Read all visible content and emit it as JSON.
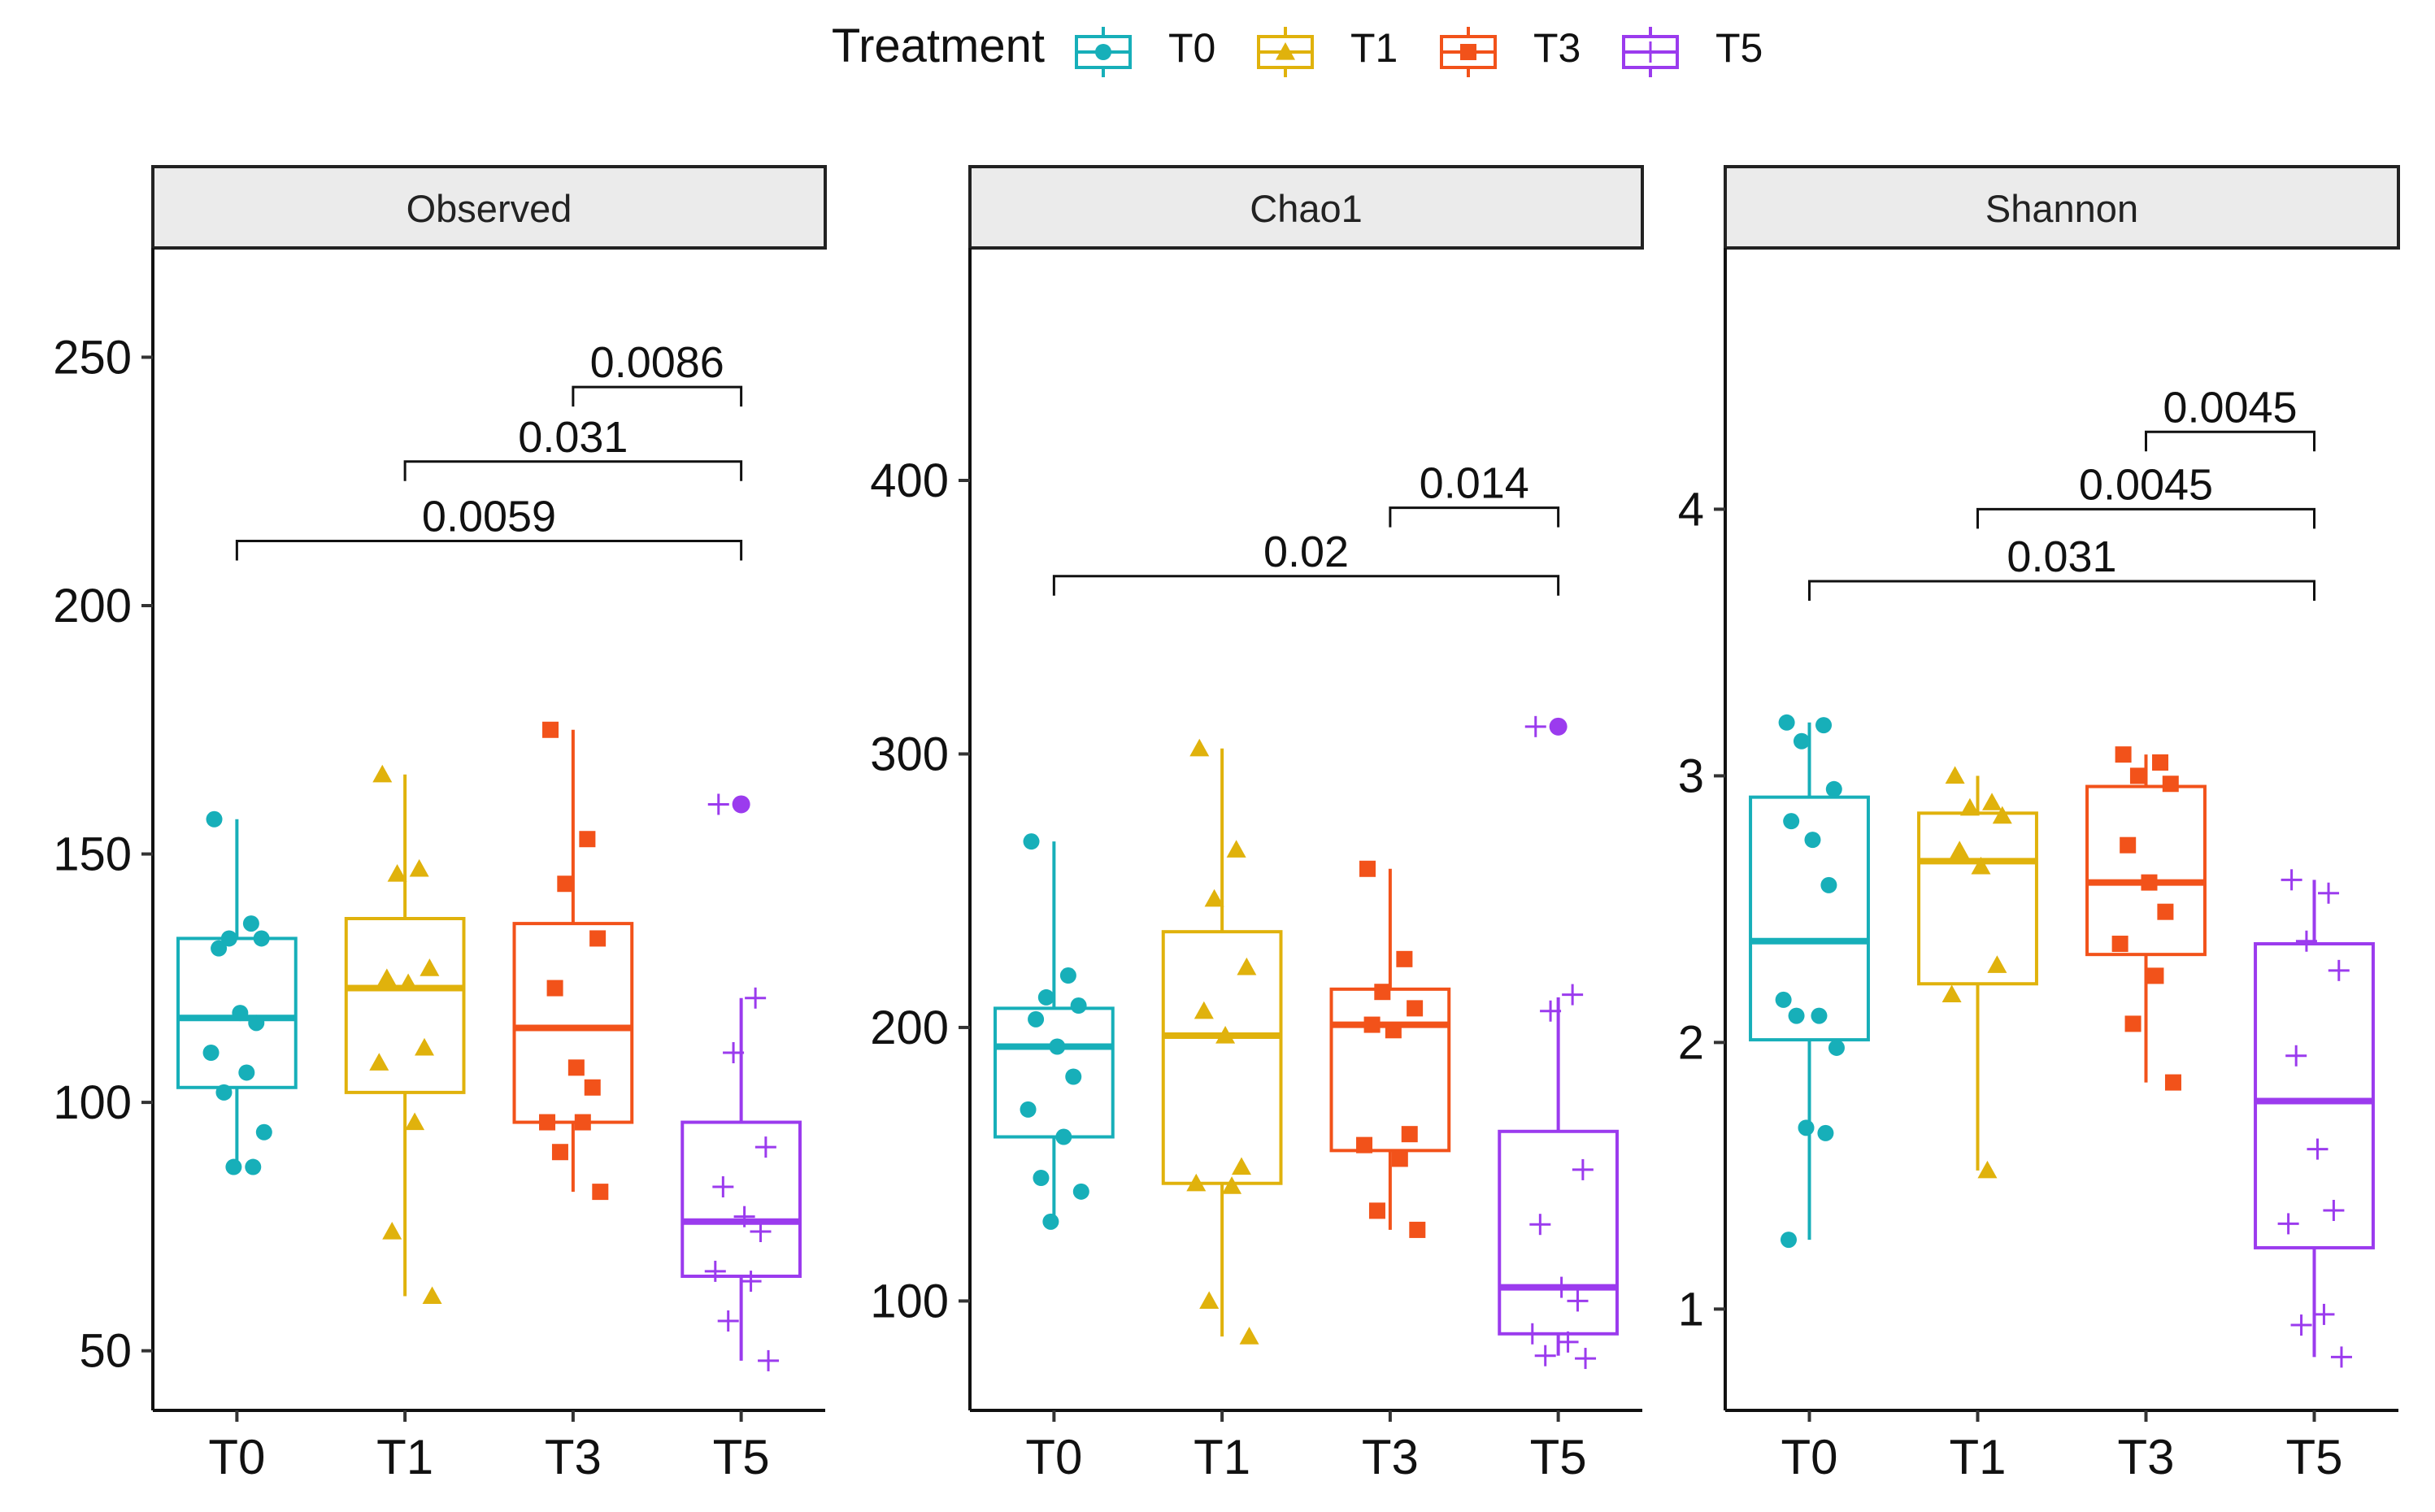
{
  "legend": {
    "title": "Treatment",
    "items": [
      {
        "key": "T0",
        "label": "T0",
        "color": "#17AFB9",
        "shape": "circle"
      },
      {
        "key": "T1",
        "label": "T1",
        "color": "#E0B20C",
        "shape": "triangle"
      },
      {
        "key": "T3",
        "label": "T3",
        "color": "#F2521A",
        "shape": "square"
      },
      {
        "key": "T5",
        "label": "T5",
        "color": "#9B3BEE",
        "shape": "plus"
      }
    ]
  },
  "chart_data": [
    {
      "type": "box",
      "title": "Observed",
      "categories": [
        "T0",
        "T1",
        "T3",
        "T5"
      ],
      "ylim": [
        38,
        272
      ],
      "yticks": [
        50,
        100,
        150,
        200,
        250
      ],
      "boxes": [
        {
          "category": "T0",
          "q1": 103,
          "median": 117,
          "q3": 133,
          "whisker_low": 87,
          "whisker_high": 157,
          "outliers": []
        },
        {
          "category": "T1",
          "q1": 102,
          "median": 123,
          "q3": 137,
          "whisker_low": 61,
          "whisker_high": 166,
          "outliers": []
        },
        {
          "category": "T3",
          "q1": 96,
          "median": 115,
          "q3": 136,
          "whisker_low": 82,
          "whisker_high": 175,
          "outliers": []
        },
        {
          "category": "T5",
          "q1": 65,
          "median": 76,
          "q3": 96,
          "whisker_low": 48,
          "whisker_high": 121,
          "outliers": [
            160
          ]
        }
      ],
      "points": [
        {
          "category": "T0",
          "values": [
            157,
            136,
            133,
            133,
            131,
            118,
            116,
            110,
            106,
            102,
            94,
            87,
            87
          ]
        },
        {
          "category": "T1",
          "values": [
            166,
            147,
            146,
            127,
            125,
            124,
            111,
            108,
            96,
            74,
            61
          ]
        },
        {
          "category": "T3",
          "values": [
            175,
            153,
            144,
            133,
            123,
            107,
            103,
            96,
            96,
            90,
            82
          ]
        },
        {
          "category": "T5",
          "values": [
            160,
            121,
            110,
            91,
            83,
            77,
            74,
            66,
            64,
            56,
            48
          ]
        }
      ],
      "comparisons": [
        {
          "from": "T3",
          "to": "T5",
          "label": "0.0086",
          "y": 244
        },
        {
          "from": "T1",
          "to": "T5",
          "label": "0.031",
          "y": 229
        },
        {
          "from": "T0",
          "to": "T5",
          "label": "0.0059",
          "y": 213
        }
      ]
    },
    {
      "type": "box",
      "title": "Chao1",
      "categories": [
        "T0",
        "T1",
        "T3",
        "T5"
      ],
      "ylim": [
        60,
        485
      ],
      "yticks": [
        100,
        200,
        300,
        400
      ],
      "boxes": [
        {
          "category": "T0",
          "q1": 160,
          "median": 193,
          "q3": 207,
          "whisker_low": 130,
          "whisker_high": 268,
          "outliers": []
        },
        {
          "category": "T1",
          "q1": 143,
          "median": 197,
          "q3": 235,
          "whisker_low": 87,
          "whisker_high": 302,
          "outliers": []
        },
        {
          "category": "T3",
          "q1": 155,
          "median": 201,
          "q3": 214,
          "whisker_low": 126,
          "whisker_high": 258,
          "outliers": []
        },
        {
          "category": "T5",
          "q1": 88,
          "median": 105,
          "q3": 162,
          "whisker_low": 80,
          "whisker_high": 211,
          "outliers": [
            310
          ]
        }
      ],
      "points": [
        {
          "category": "T0",
          "values": [
            268,
            219,
            211,
            208,
            203,
            193,
            182,
            170,
            160,
            145,
            140,
            129
          ]
        },
        {
          "category": "T1",
          "values": [
            302,
            265,
            247,
            222,
            206,
            197,
            149,
            143,
            142,
            100,
            87
          ]
        },
        {
          "category": "T3",
          "values": [
            258,
            225,
            213,
            207,
            201,
            199,
            161,
            157,
            152,
            133,
            126
          ]
        },
        {
          "category": "T5",
          "values": [
            310,
            212,
            206,
            148,
            128,
            105,
            100,
            88,
            85,
            80,
            79
          ]
        }
      ],
      "comparisons": [
        {
          "from": "T3",
          "to": "T5",
          "label": "0.014",
          "y": 390
        },
        {
          "from": "T0",
          "to": "T5",
          "label": "0.02",
          "y": 365
        }
      ]
    },
    {
      "type": "box",
      "title": "Shannon",
      "categories": [
        "T0",
        "T1",
        "T3",
        "T5"
      ],
      "ylim": [
        0.62,
        4.98
      ],
      "yticks": [
        1,
        2,
        3,
        4
      ],
      "boxes": [
        {
          "category": "T0",
          "q1": 2.01,
          "median": 2.38,
          "q3": 2.92,
          "whisker_low": 1.26,
          "whisker_high": 3.2,
          "outliers": []
        },
        {
          "category": "T1",
          "q1": 2.22,
          "median": 2.68,
          "q3": 2.86,
          "whisker_low": 1.52,
          "whisker_high": 3.0,
          "outliers": []
        },
        {
          "category": "T3",
          "q1": 2.33,
          "median": 2.6,
          "q3": 2.96,
          "whisker_low": 1.85,
          "whisker_high": 3.08,
          "outliers": []
        },
        {
          "category": "T5",
          "q1": 1.23,
          "median": 1.78,
          "q3": 2.37,
          "whisker_low": 0.82,
          "whisker_high": 2.61,
          "outliers": []
        }
      ],
      "points": [
        {
          "category": "T0",
          "values": [
            3.2,
            3.19,
            3.13,
            2.95,
            2.83,
            2.76,
            2.59,
            2.16,
            2.1,
            2.1,
            1.98,
            1.68,
            1.66,
            1.26
          ]
        },
        {
          "category": "T1",
          "values": [
            3.0,
            2.9,
            2.88,
            2.85,
            2.72,
            2.66,
            2.29,
            2.18,
            1.52
          ]
        },
        {
          "category": "T3",
          "values": [
            3.08,
            3.05,
            3.0,
            2.97,
            2.74,
            2.6,
            2.49,
            2.37,
            2.25,
            2.07,
            1.85
          ]
        },
        {
          "category": "T5",
          "values": [
            2.61,
            2.56,
            2.38,
            2.27,
            1.95,
            1.6,
            1.37,
            1.32,
            0.98,
            0.94,
            0.82
          ]
        }
      ],
      "comparisons": [
        {
          "from": "T3",
          "to": "T5",
          "label": "0.0045",
          "y": 4.29
        },
        {
          "from": "T1",
          "to": "T5",
          "label": "0.0045",
          "y": 4.0
        },
        {
          "from": "T0",
          "to": "T5",
          "label": "0.031",
          "y": 3.73
        }
      ]
    }
  ]
}
